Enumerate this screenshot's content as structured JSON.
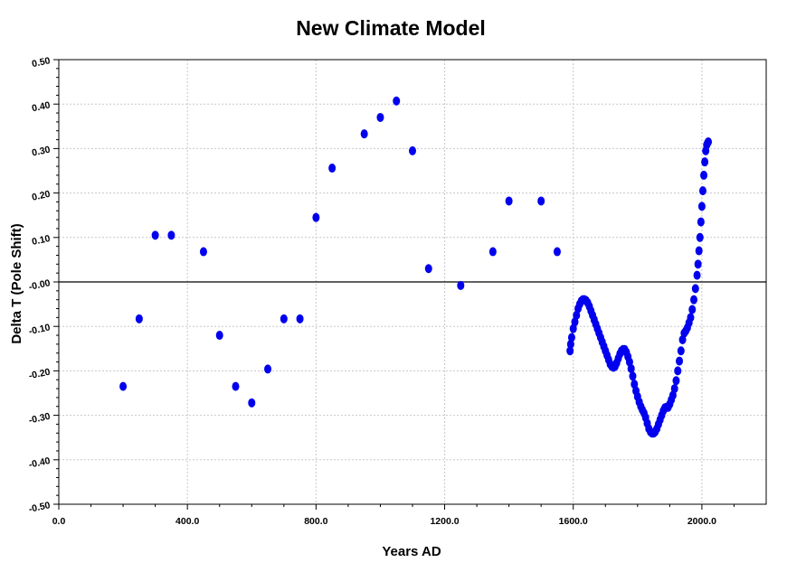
{
  "chart_data": {
    "type": "scatter",
    "title": "New Climate Model",
    "xlabel": "Years AD",
    "ylabel": "Delta T (Pole Shift)",
    "xlim": [
      0,
      2200
    ],
    "ylim": [
      -0.5,
      0.5
    ],
    "x_ticks": [
      0,
      400,
      800,
      1200,
      1600,
      2000
    ],
    "x_tick_labels": [
      "0.0",
      "400.0",
      "800.0",
      "1200.0",
      "1600.0",
      "2000.0"
    ],
    "y_ticks": [
      -0.5,
      -0.4,
      -0.3,
      -0.2,
      -0.1,
      0,
      0.1,
      0.2,
      0.3,
      0.4,
      0.5
    ],
    "y_tick_labels": [
      "-0.50",
      "-0.40",
      "-0.30",
      "-0.20",
      "-0.10",
      "-0.00",
      "0.10",
      "0.20",
      "0.30",
      "0.40",
      "0.50"
    ],
    "grid": true,
    "zero_line": true,
    "point_color": "#0000ee",
    "series": [
      {
        "points": [
          [
            200,
            -0.235
          ],
          [
            250,
            -0.083
          ],
          [
            300,
            0.105
          ],
          [
            350,
            0.105
          ],
          [
            450,
            0.068
          ],
          [
            500,
            -0.12
          ],
          [
            550,
            -0.235
          ],
          [
            600,
            -0.272
          ],
          [
            650,
            -0.196
          ],
          [
            700,
            -0.083
          ],
          [
            750,
            -0.083
          ],
          [
            800,
            0.145
          ],
          [
            850,
            0.256
          ],
          [
            950,
            0.333
          ],
          [
            1000,
            0.37
          ],
          [
            1050,
            0.407
          ],
          [
            1100,
            0.295
          ],
          [
            1150,
            0.03
          ],
          [
            1250,
            -0.008
          ],
          [
            1350,
            0.068
          ],
          [
            1400,
            0.182
          ],
          [
            1500,
            0.182
          ],
          [
            1550,
            0.068
          ]
        ]
      },
      {
        "points": [
          [
            1590,
            -0.155
          ],
          [
            1592,
            -0.14
          ],
          [
            1595,
            -0.125
          ],
          [
            1600,
            -0.105
          ],
          [
            1605,
            -0.09
          ],
          [
            1610,
            -0.075
          ],
          [
            1615,
            -0.06
          ],
          [
            1620,
            -0.05
          ],
          [
            1625,
            -0.043
          ],
          [
            1630,
            -0.04
          ],
          [
            1635,
            -0.04
          ],
          [
            1640,
            -0.042
          ],
          [
            1645,
            -0.047
          ],
          [
            1650,
            -0.055
          ],
          [
            1655,
            -0.065
          ],
          [
            1660,
            -0.075
          ],
          [
            1665,
            -0.085
          ],
          [
            1670,
            -0.095
          ],
          [
            1675,
            -0.105
          ],
          [
            1680,
            -0.115
          ],
          [
            1685,
            -0.125
          ],
          [
            1690,
            -0.135
          ],
          [
            1695,
            -0.145
          ],
          [
            1700,
            -0.155
          ],
          [
            1705,
            -0.165
          ],
          [
            1710,
            -0.175
          ],
          [
            1715,
            -0.185
          ],
          [
            1720,
            -0.19
          ],
          [
            1725,
            -0.192
          ],
          [
            1730,
            -0.19
          ],
          [
            1735,
            -0.182
          ],
          [
            1740,
            -0.172
          ],
          [
            1745,
            -0.162
          ],
          [
            1750,
            -0.155
          ],
          [
            1755,
            -0.152
          ],
          [
            1760,
            -0.152
          ],
          [
            1765,
            -0.158
          ],
          [
            1770,
            -0.168
          ],
          [
            1775,
            -0.18
          ],
          [
            1780,
            -0.195
          ],
          [
            1785,
            -0.212
          ],
          [
            1790,
            -0.23
          ],
          [
            1795,
            -0.245
          ],
          [
            1800,
            -0.258
          ],
          [
            1805,
            -0.27
          ],
          [
            1810,
            -0.28
          ],
          [
            1815,
            -0.288
          ],
          [
            1820,
            -0.295
          ],
          [
            1825,
            -0.305
          ],
          [
            1830,
            -0.318
          ],
          [
            1835,
            -0.33
          ],
          [
            1840,
            -0.337
          ],
          [
            1845,
            -0.34
          ],
          [
            1850,
            -0.34
          ],
          [
            1855,
            -0.337
          ],
          [
            1860,
            -0.33
          ],
          [
            1865,
            -0.32
          ],
          [
            1870,
            -0.31
          ],
          [
            1875,
            -0.3
          ],
          [
            1880,
            -0.29
          ],
          [
            1885,
            -0.283
          ],
          [
            1890,
            -0.282
          ],
          [
            1895,
            -0.282
          ],
          [
            1900,
            -0.275
          ],
          [
            1905,
            -0.265
          ],
          [
            1910,
            -0.255
          ],
          [
            1915,
            -0.24
          ],
          [
            1920,
            -0.222
          ],
          [
            1925,
            -0.2
          ],
          [
            1930,
            -0.178
          ],
          [
            1935,
            -0.155
          ],
          [
            1940,
            -0.13
          ],
          [
            1945,
            -0.115
          ],
          [
            1950,
            -0.11
          ],
          [
            1955,
            -0.103
          ],
          [
            1960,
            -0.092
          ],
          [
            1965,
            -0.08
          ],
          [
            1970,
            -0.062
          ],
          [
            1975,
            -0.04
          ],
          [
            1980,
            -0.015
          ],
          [
            1985,
            0.015
          ],
          [
            1988,
            0.04
          ],
          [
            1991,
            0.07
          ],
          [
            1994,
            0.1
          ],
          [
            1997,
            0.135
          ],
          [
            2000,
            0.17
          ],
          [
            2003,
            0.205
          ],
          [
            2006,
            0.24
          ],
          [
            2009,
            0.27
          ],
          [
            2012,
            0.295
          ],
          [
            2015,
            0.308
          ],
          [
            2018,
            0.313
          ],
          [
            2020,
            0.315
          ]
        ]
      }
    ]
  }
}
